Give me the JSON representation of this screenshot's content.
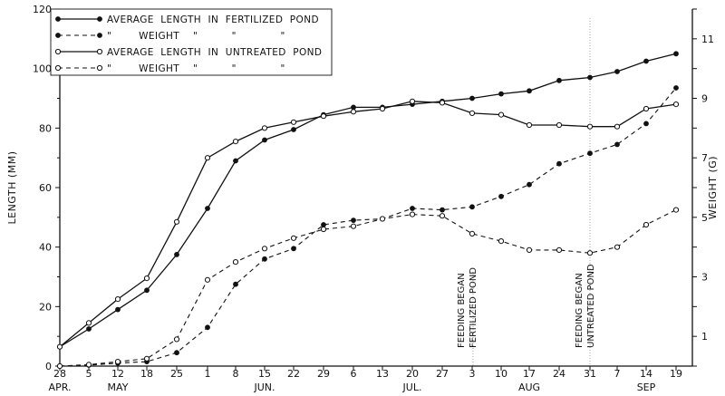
{
  "chart_data": {
    "type": "line",
    "ylabel_left": "LENGTH (MM)",
    "ylabel_right": "WEIGHT (G)",
    "ylim_left": [
      0,
      120
    ],
    "ylim_right": [
      0,
      12
    ],
    "yticks_left": [
      "0",
      "20",
      "40",
      "60",
      "80",
      "100",
      "120"
    ],
    "yticks_right": [
      "1",
      "3",
      "5",
      "7",
      "9",
      "11"
    ],
    "x_ticks": [
      "28",
      "5",
      "12",
      "18",
      "25",
      "1",
      "8",
      "15",
      "22",
      "29",
      "6",
      "13",
      "20",
      "27",
      "3",
      "10",
      "17",
      "24",
      "31",
      "7",
      "14",
      "19"
    ],
    "months": [
      "APR.",
      "MAY",
      "JUN.",
      "JUL.",
      "AUG",
      "SEP"
    ],
    "legend": {
      "rows": [
        {
          "text": "AVERAGE  LENGTH  IN  FERTILIZED  POND"
        },
        {
          "text": "\"        WEIGHT    \"          \"             \""
        },
        {
          "text": "AVERAGE  LENGTH  IN  UNTREATED  POND"
        },
        {
          "text": "\"        WEIGHT    \"          \"             \""
        }
      ]
    },
    "annotations": [
      {
        "line1": "FEEDING  BEGAN",
        "line2": "FERTILIZED  POND"
      },
      {
        "line1": "FEEDING  BEGAN",
        "line2": "UNTREATED  POND"
      }
    ],
    "series": [
      {
        "key": "len_fert",
        "axis": "left",
        "marker": "filled",
        "dash": false,
        "values": [
          6.5,
          12.5,
          19,
          25.5,
          37.5,
          53,
          69,
          76,
          79.5,
          84.5,
          87,
          87,
          88,
          89,
          90,
          91.5,
          92.5,
          96,
          97,
          99,
          102.5,
          105
        ]
      },
      {
        "key": "wt_fert",
        "axis": "right",
        "marker": "filled",
        "dash": true,
        "values": [
          0,
          0.03,
          0.1,
          0.15,
          0.45,
          1.3,
          2.75,
          3.6,
          3.95,
          4.75,
          4.9,
          4.95,
          5.3,
          5.25,
          5.35,
          5.7,
          6.1,
          6.8,
          7.15,
          7.45,
          8.15,
          9.35
        ]
      },
      {
        "key": "len_untr",
        "axis": "left",
        "marker": "open",
        "dash": false,
        "values": [
          6.5,
          14.5,
          22.5,
          29.5,
          48.5,
          70,
          75.5,
          80,
          82,
          84,
          85.5,
          86.5,
          89,
          88.5,
          85,
          84.5,
          81,
          81,
          80.5,
          80.5,
          86.5,
          88
        ]
      },
      {
        "key": "wt_untr",
        "axis": "right",
        "marker": "open",
        "dash": true,
        "values": [
          0,
          0.05,
          0.15,
          0.25,
          0.9,
          2.9,
          3.5,
          3.95,
          4.3,
          4.6,
          4.7,
          4.95,
          5.1,
          5.05,
          4.45,
          4.2,
          3.9,
          3.9,
          3.8,
          4.0,
          4.75,
          5.25
        ]
      }
    ]
  }
}
